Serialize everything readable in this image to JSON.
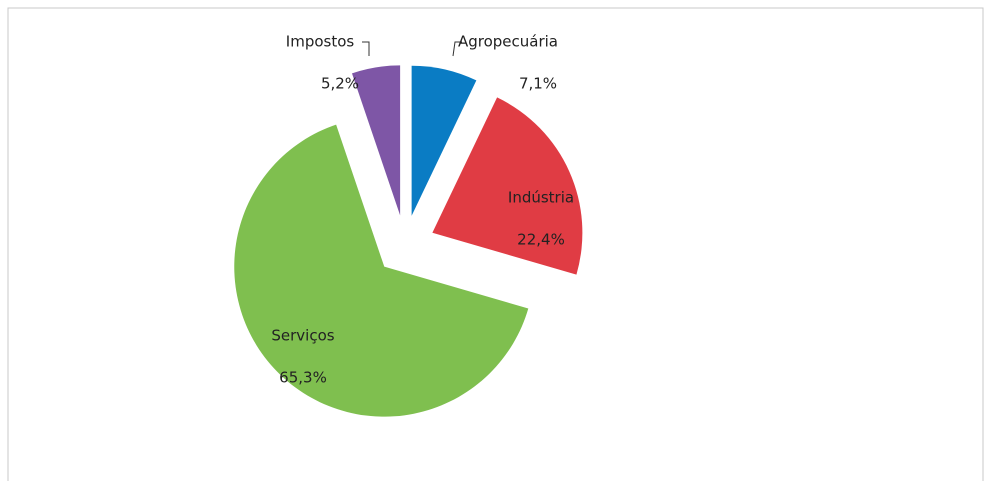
{
  "chart_data": {
    "type": "pie",
    "categories": [
      "Agropecuária",
      "Indústria",
      "Serviços",
      "Impostos"
    ],
    "values": [
      7.1,
      22.4,
      65.3,
      5.2
    ],
    "value_labels": [
      "7,1%",
      "22,4%",
      "65,3%",
      "5,2%"
    ],
    "colors": [
      "#0a7cc4",
      "#e03c44",
      "#7fbf4f",
      "#7e56a6"
    ],
    "exploded": true
  }
}
